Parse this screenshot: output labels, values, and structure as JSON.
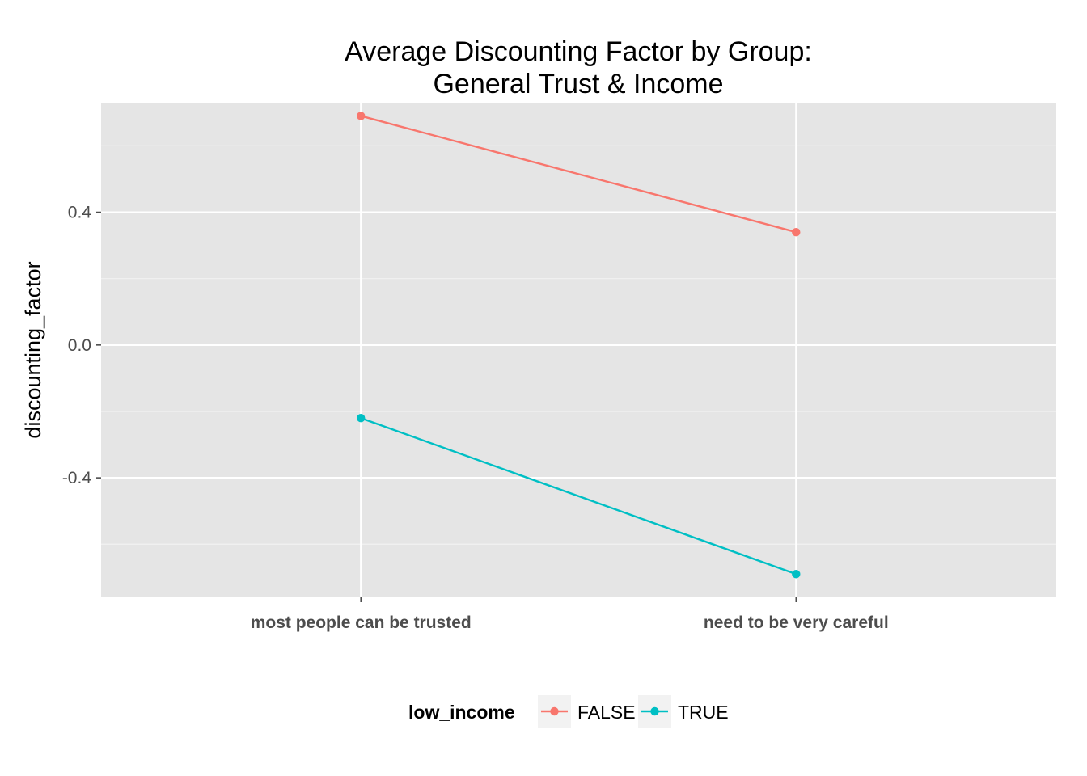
{
  "chart_data": {
    "type": "line",
    "title": [
      "Average Discounting Factor by Group:",
      "General Trust & Income"
    ],
    "xlabel": "",
    "ylabel": "discounting_factor",
    "categories": [
      "most people can be trusted",
      "need to be very careful"
    ],
    "ylim": [
      -0.76,
      0.73
    ],
    "yticks": [
      -0.4,
      0.0,
      0.4
    ],
    "ytick_labels": [
      "-0.4",
      "0.0",
      "0.4"
    ],
    "series": [
      {
        "name": "FALSE",
        "color": "#F8766D",
        "values": [
          0.69,
          0.34
        ]
      },
      {
        "name": "TRUE",
        "color": "#00BFC4",
        "values": [
          -0.22,
          -0.69
        ]
      }
    ],
    "legend": {
      "title": "low_income",
      "position": "bottom"
    },
    "grid": true,
    "panel_background": "#E5E5E5"
  }
}
